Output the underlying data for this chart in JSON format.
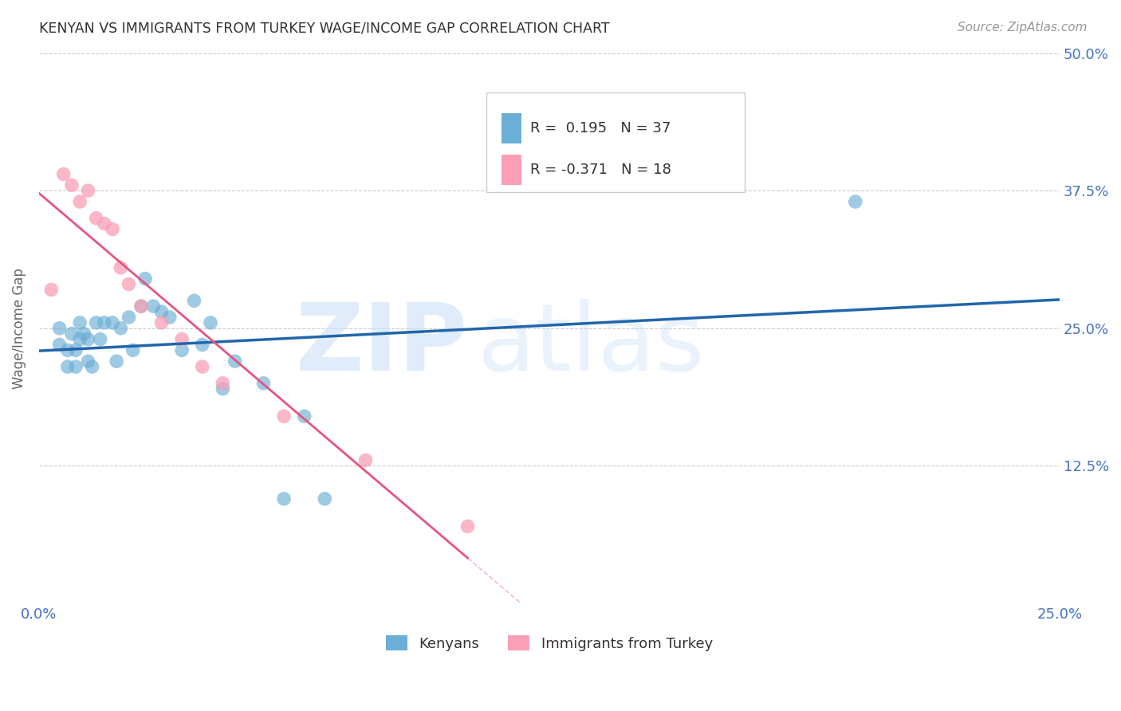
{
  "title": "KENYAN VS IMMIGRANTS FROM TURKEY WAGE/INCOME GAP CORRELATION CHART",
  "source": "Source: ZipAtlas.com",
  "ylabel": "Wage/Income Gap",
  "x_min": 0.0,
  "x_max": 0.25,
  "y_min": 0.0,
  "y_max": 0.5,
  "x_ticks": [
    0.0,
    0.05,
    0.1,
    0.15,
    0.2,
    0.25
  ],
  "y_ticks": [
    0.0,
    0.125,
    0.25,
    0.375,
    0.5
  ],
  "y_tick_labels": [
    "",
    "12.5%",
    "25.0%",
    "37.5%",
    "50.0%"
  ],
  "kenyan_color": "#6baed6",
  "turkey_color": "#fa9fb5",
  "kenyan_line_color": "#2166ac",
  "turkey_line_color": "#e75480",
  "kenyan_R": 0.195,
  "kenyan_N": 37,
  "turkey_R": -0.371,
  "turkey_N": 18,
  "watermark_zip": "ZIP",
  "watermark_atlas": "atlas",
  "background_color": "#ffffff",
  "grid_color": "#cccccc",
  "axis_color": "#4472c4",
  "kenyan_x": [
    0.005,
    0.005,
    0.007,
    0.007,
    0.008,
    0.009,
    0.009,
    0.01,
    0.01,
    0.011,
    0.012,
    0.012,
    0.013,
    0.014,
    0.015,
    0.016,
    0.018,
    0.019,
    0.02,
    0.022,
    0.023,
    0.025,
    0.026,
    0.028,
    0.03,
    0.032,
    0.035,
    0.038,
    0.04,
    0.042,
    0.045,
    0.048,
    0.055,
    0.06,
    0.065,
    0.07,
    0.2
  ],
  "kenyan_y": [
    0.235,
    0.25,
    0.215,
    0.23,
    0.245,
    0.215,
    0.23,
    0.24,
    0.255,
    0.245,
    0.22,
    0.24,
    0.215,
    0.255,
    0.24,
    0.255,
    0.255,
    0.22,
    0.25,
    0.26,
    0.23,
    0.27,
    0.295,
    0.27,
    0.265,
    0.26,
    0.23,
    0.275,
    0.235,
    0.255,
    0.195,
    0.22,
    0.2,
    0.095,
    0.17,
    0.095,
    0.365
  ],
  "turkey_x": [
    0.003,
    0.006,
    0.008,
    0.01,
    0.012,
    0.014,
    0.016,
    0.018,
    0.02,
    0.022,
    0.025,
    0.03,
    0.035,
    0.04,
    0.045,
    0.06,
    0.08,
    0.105
  ],
  "turkey_y": [
    0.285,
    0.39,
    0.38,
    0.365,
    0.375,
    0.35,
    0.345,
    0.34,
    0.305,
    0.29,
    0.27,
    0.255,
    0.24,
    0.215,
    0.2,
    0.17,
    0.13,
    0.07
  ]
}
